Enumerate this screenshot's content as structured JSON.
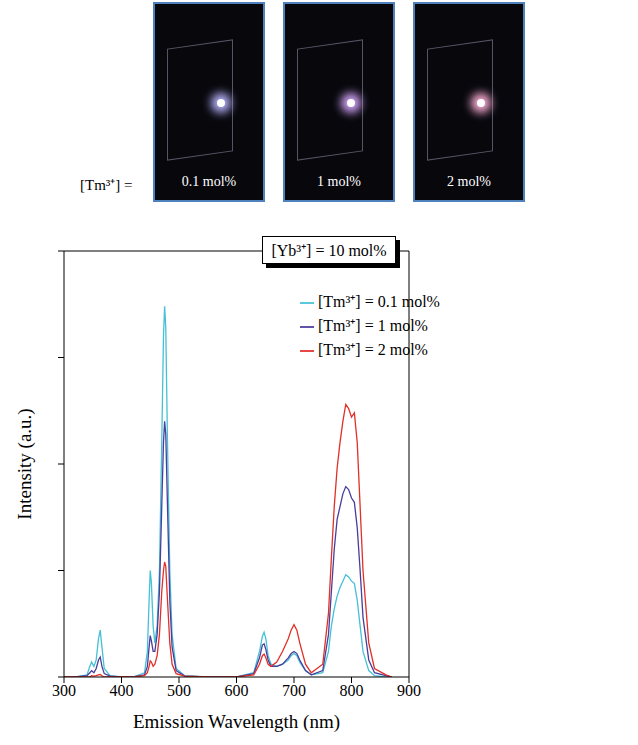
{
  "chart_data": {
    "type": "line",
    "annotations": [
      "[Yb³⁺] = 10 mol%"
    ],
    "xlabel": "Emission Wavelength (nm)",
    "ylabel": "Intensity (a.u.)",
    "x": [
      300,
      320,
      340,
      345,
      348,
      352,
      356,
      360,
      363,
      366,
      370,
      380,
      400,
      420,
      440,
      445,
      448,
      450,
      452,
      455,
      458,
      462,
      466,
      470,
      473,
      475,
      477,
      480,
      484,
      488,
      495,
      510,
      550,
      600,
      630,
      640,
      645,
      648,
      651,
      655,
      660,
      670,
      680,
      690,
      695,
      700,
      705,
      710,
      720,
      730,
      750,
      760,
      765,
      770,
      775,
      780,
      785,
      790,
      795,
      800,
      805,
      810,
      815,
      820,
      830,
      840,
      860,
      870
    ],
    "series": [
      {
        "name": "[Tm³⁺] = 0.1 mol%",
        "color": "#45c0d6",
        "values": [
          0,
          0,
          0.5,
          2.5,
          3.5,
          2.5,
          4,
          9,
          11,
          7,
          2,
          0.3,
          0,
          0,
          1,
          6,
          18,
          25,
          22,
          12,
          8,
          12,
          25,
          55,
          80,
          87,
          82,
          55,
          25,
          10,
          2,
          0.3,
          0,
          0,
          1,
          6,
          9.5,
          10.5,
          9,
          5,
          3,
          2.5,
          3,
          4,
          5,
          5.5,
          5,
          3.5,
          1.5,
          0.5,
          1,
          6,
          12,
          16,
          19,
          21,
          22.5,
          24,
          23.5,
          22.5,
          22,
          18,
          12,
          6,
          1.5,
          0.3,
          0,
          0
        ]
      },
      {
        "name": "[Tm³⁺] = 1 mol%",
        "color": "#4a3d9c",
        "values": [
          0,
          0,
          0.3,
          1,
          1.5,
          1,
          2,
          4,
          4.7,
          2.5,
          0.8,
          0.2,
          0,
          0,
          0.5,
          2.5,
          7,
          9.7,
          8.5,
          6,
          6,
          10,
          20,
          40,
          55,
          60,
          57,
          40,
          18,
          7,
          1.5,
          0.2,
          0,
          0,
          0.8,
          4.5,
          7.5,
          7.8,
          6.5,
          4,
          2.5,
          2.5,
          3,
          4.5,
          5.5,
          6,
          5.5,
          4,
          1.5,
          0.5,
          1.5,
          10,
          20,
          30,
          37,
          40,
          43,
          44.7,
          44,
          42,
          41,
          35,
          25,
          14,
          4,
          1,
          0.3,
          0
        ]
      },
      {
        "name": "[Tm³⁺] = 2 mol%",
        "color": "#e03028",
        "values": [
          0,
          0,
          0,
          0,
          0.3,
          0.2,
          0.3,
          0.5,
          0.6,
          0.3,
          0,
          0,
          0,
          0,
          0.3,
          1,
          2.5,
          3.8,
          3.5,
          2.5,
          3,
          5,
          10,
          20,
          25,
          27,
          26,
          18,
          8,
          3,
          0.8,
          0.2,
          0,
          0,
          0.5,
          3,
          5,
          5.4,
          4.5,
          3,
          2.5,
          3.5,
          6,
          9,
          11,
          12.3,
          11,
          8,
          3,
          1,
          3,
          15,
          28,
          40,
          49,
          55,
          60,
          64,
          63,
          61,
          62,
          55,
          40,
          25,
          8,
          2,
          0.5,
          0
        ]
      }
    ],
    "xlim": [
      300,
      900
    ],
    "xticks": [
      300,
      400,
      500,
      600,
      700,
      800,
      900
    ],
    "ylim": [
      0,
      100
    ],
    "yticks": [
      0,
      25,
      50,
      75,
      100
    ],
    "tick_labels": "x",
    "grid": false,
    "legend": "upper right"
  },
  "photos": {
    "label": "[Tm³⁺] =",
    "panels": [
      "0.1 mol%",
      "1 mol%",
      "2 mol%"
    ]
  }
}
